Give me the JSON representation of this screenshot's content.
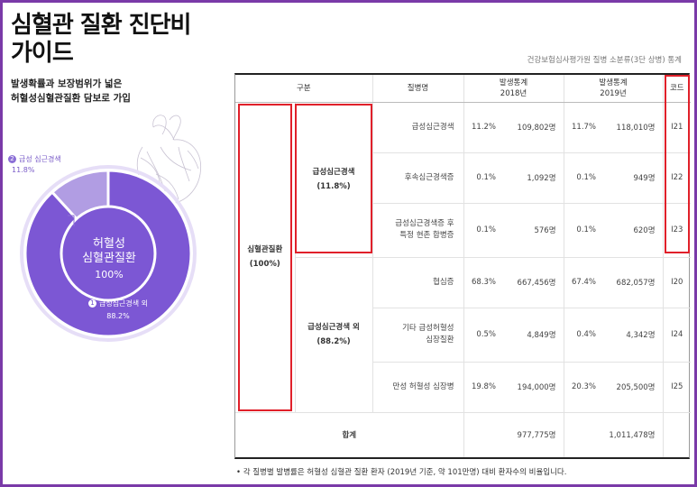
{
  "page": {
    "title_line1": "심혈관 질환 진단비",
    "title_line2": "가이드",
    "subtitle_line1": "발생확률과 보장범위가 넓은",
    "subtitle_line2": "허혈성심혈관질환 담보로 가입",
    "source": "건강보험심사평가원 질병 소분류(3단 상병) 통계",
    "footnote": "•  각 질병별 발병률은 허혈성 심혈관 질환 환자 (2019년 기준, 약 101만명) 대비 환자수의 비율입니다."
  },
  "donut": {
    "center_l1": "허혈성",
    "center_l2": "심혈관질환",
    "center_l3": "100%",
    "seg1_num": "2",
    "seg1_label": "급성 심근경색",
    "seg1_pct": "11.8%",
    "seg2_num": "1",
    "seg2_label": "급성심근경색 외",
    "seg2_pct": "88.2%",
    "values": [
      11.8,
      88.2
    ],
    "colors": [
      "#b19de3",
      "#7c57d4"
    ]
  },
  "table": {
    "headers": {
      "group": "구분",
      "disease": "질병명",
      "stat2018_l1": "발생통계",
      "stat2018_l2": "2018년",
      "stat2019_l1": "발생통계",
      "stat2019_l2": "2019년",
      "code": "코드"
    },
    "group_main": {
      "l1": "심혈관질환",
      "l2": "(100%)"
    },
    "group_acute": {
      "l1": "급성심근경색",
      "l2": "(11.8%)"
    },
    "group_other": {
      "l1": "급성심근경색 외",
      "l2": "(88.2%)"
    },
    "rows": [
      {
        "name_l1": "급성심근경색",
        "name_l2": "",
        "p18": "11.2%",
        "n18": "109,802명",
        "p19": "11.7%",
        "n19": "118,010명",
        "code": "I21"
      },
      {
        "name_l1": "후속심근경색증",
        "name_l2": "",
        "p18": "0.1%",
        "n18": "1,092명",
        "p19": "0.1%",
        "n19": "949명",
        "code": "I22"
      },
      {
        "name_l1": "급성심근경색증 후",
        "name_l2": "특정 현존 합병증",
        "p18": "0.1%",
        "n18": "576명",
        "p19": "0.1%",
        "n19": "620명",
        "code": "I23"
      },
      {
        "name_l1": "협심증",
        "name_l2": "",
        "p18": "68.3%",
        "n18": "667,456명",
        "p19": "67.4%",
        "n19": "682,057명",
        "code": "I20"
      },
      {
        "name_l1": "기타 급성허혈성",
        "name_l2": "심장질환",
        "p18": "0.5%",
        "n18": "4,849명",
        "p19": "0.4%",
        "n19": "4,342명",
        "code": "I24"
      },
      {
        "name_l1": "만성 허혈성 심장병",
        "name_l2": "",
        "p18": "19.8%",
        "n18": "194,000명",
        "p19": "20.3%",
        "n19": "205,500명",
        "code": "I25"
      }
    ],
    "total": {
      "label": "합계",
      "n18": "977,775명",
      "n19": "1,011,478명"
    }
  },
  "colors": {
    "frame": "#7a3aa8",
    "highlight": "#e0202a",
    "donut_main": "#7c57d4",
    "donut_minor": "#b19de3"
  }
}
